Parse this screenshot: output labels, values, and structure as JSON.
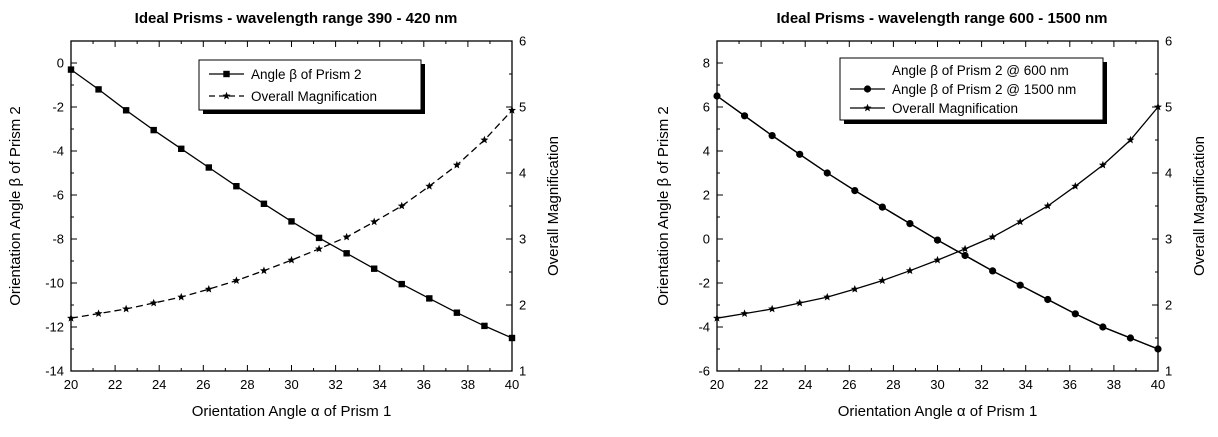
{
  "chart_data": [
    {
      "type": "line",
      "title": "Ideal Prisms - wavelength range 390 - 420 nm",
      "xlabel": "Orientation Angle α of Prism 1",
      "ylabel_left": "Orientation Angle β of Prism 2",
      "ylabel_right": "Overall Magnification",
      "xlim": [
        20,
        40
      ],
      "ylim_left": [
        -14,
        1
      ],
      "ylim_right": [
        1,
        6
      ],
      "xticks": [
        20,
        22,
        24,
        26,
        28,
        30,
        32,
        34,
        36,
        38,
        40
      ],
      "yticks_left": [
        -14,
        -12,
        -10,
        -8,
        -6,
        -4,
        -2,
        0
      ],
      "yticks_right": [
        1,
        2,
        3,
        4,
        5,
        6
      ],
      "legend_position": "top-right",
      "legend_shadow": true,
      "series": [
        {
          "name": "Angle β of Prism 2",
          "axis": "left",
          "marker": "square",
          "line": "solid",
          "x": [
            20,
            21.25,
            22.5,
            23.75,
            25,
            26.25,
            27.5,
            28.75,
            30,
            31.25,
            32.5,
            33.75,
            35,
            36.25,
            37.5,
            38.75,
            40
          ],
          "y": [
            -0.3,
            -1.2,
            -2.15,
            -3.05,
            -3.9,
            -4.75,
            -5.6,
            -6.4,
            -7.2,
            -7.95,
            -8.65,
            -9.35,
            -10.05,
            -10.7,
            -11.35,
            -11.95,
            -12.5
          ]
        },
        {
          "name": "Overall Magnification",
          "axis": "right",
          "marker": "star",
          "line": "dashed",
          "x": [
            20,
            21.25,
            22.5,
            23.75,
            25,
            26.25,
            27.5,
            28.75,
            30,
            31.25,
            32.5,
            33.75,
            35,
            36.25,
            37.5,
            38.75,
            40
          ],
          "y": [
            1.8,
            1.87,
            1.94,
            2.03,
            2.12,
            2.24,
            2.37,
            2.52,
            2.68,
            2.85,
            3.03,
            3.26,
            3.5,
            3.8,
            4.12,
            4.5,
            4.95
          ]
        }
      ]
    },
    {
      "type": "line",
      "title": "Ideal Prisms - wavelength range 600 - 1500 nm",
      "xlabel": "Orientation Angle α of Prism 1",
      "ylabel_left": "Orientation Angle β of Prism 2",
      "ylabel_right": "Overall Magnification",
      "xlim": [
        20,
        40
      ],
      "ylim_left": [
        -6,
        9
      ],
      "ylim_right": [
        1,
        6
      ],
      "xticks": [
        20,
        22,
        24,
        26,
        28,
        30,
        32,
        34,
        36,
        38,
        40
      ],
      "yticks_left": [
        -6,
        -4,
        -2,
        0,
        2,
        4,
        6,
        8
      ],
      "yticks_right": [
        1,
        2,
        3,
        4,
        5,
        6
      ],
      "legend_position": "top-right",
      "legend_shadow": true,
      "series": [
        {
          "name": "Angle β of Prism 2 @ 600 nm",
          "axis": "left",
          "marker": "none",
          "line": "solid",
          "x": [
            20,
            21.25,
            22.5,
            23.75,
            25,
            26.25,
            27.5,
            28.75,
            30,
            31.25,
            32.5,
            33.75,
            35,
            36.25,
            37.5,
            38.75,
            40
          ],
          "y": [
            6.5,
            5.6,
            4.7,
            3.85,
            3.0,
            2.2,
            1.45,
            0.7,
            -0.05,
            -0.75,
            -1.45,
            -2.1,
            -2.75,
            -3.4,
            -4.0,
            -4.5,
            -5.0
          ]
        },
        {
          "name": "Angle β of Prism 2 @ 1500 nm",
          "axis": "left",
          "marker": "circle",
          "line": "solid",
          "x": [
            20,
            21.25,
            22.5,
            23.75,
            25,
            26.25,
            27.5,
            28.75,
            30,
            31.25,
            32.5,
            33.75,
            35,
            36.25,
            37.5,
            38.75,
            40
          ],
          "y": [
            6.5,
            5.6,
            4.7,
            3.85,
            3.0,
            2.2,
            1.45,
            0.7,
            -0.05,
            -0.75,
            -1.45,
            -2.1,
            -2.75,
            -3.4,
            -4.0,
            -4.5,
            -5.0
          ]
        },
        {
          "name": "Overall Magnification",
          "axis": "right",
          "marker": "star",
          "line": "solid",
          "x": [
            20,
            21.25,
            22.5,
            23.75,
            25,
            26.25,
            27.5,
            28.75,
            30,
            31.25,
            32.5,
            33.75,
            35,
            36.25,
            37.5,
            38.75,
            40
          ],
          "y": [
            1.8,
            1.87,
            1.94,
            2.03,
            2.12,
            2.24,
            2.37,
            2.52,
            2.68,
            2.85,
            3.03,
            3.26,
            3.5,
            3.8,
            4.12,
            4.5,
            5.0
          ]
        }
      ]
    }
  ]
}
